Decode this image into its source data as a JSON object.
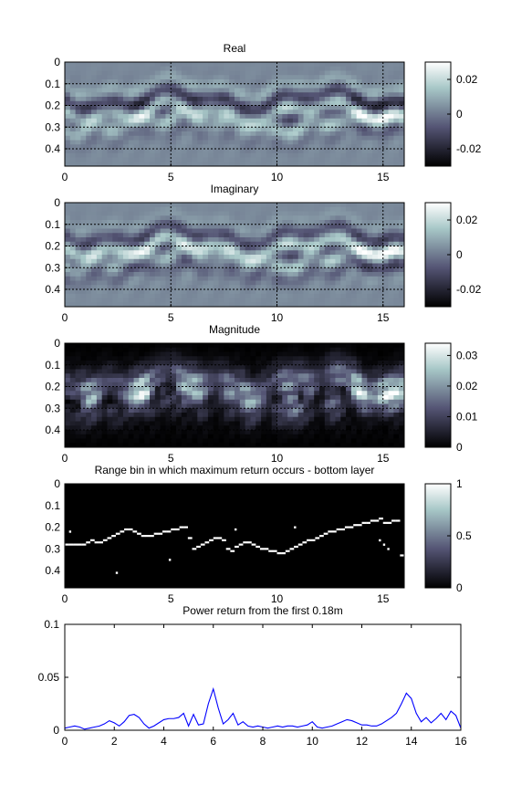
{
  "chart_data": [
    {
      "type": "heatmap",
      "title": "Real",
      "xlim": [
        0,
        16
      ],
      "ylim": [
        0,
        0.48
      ],
      "y_reversed": true,
      "grid": true,
      "x_ticks": [
        "0",
        "5",
        "10",
        "15"
      ],
      "y_ticks": [
        "0",
        "0.1",
        "0.2",
        "0.3",
        "0.4"
      ],
      "colorbar": {
        "ticks": [
          "0.02",
          "0",
          "-0.02"
        ],
        "range": [
          -0.03,
          0.03
        ]
      },
      "colormap": "bone"
    },
    {
      "type": "heatmap",
      "title": "Imaginary",
      "xlim": [
        0,
        16
      ],
      "ylim": [
        0,
        0.48
      ],
      "y_reversed": true,
      "grid": true,
      "x_ticks": [
        "0",
        "5",
        "10",
        "15"
      ],
      "y_ticks": [
        "0",
        "0.1",
        "0.2",
        "0.3",
        "0.4"
      ],
      "colorbar": {
        "ticks": [
          "0.02",
          "0",
          "-0.02"
        ],
        "range": [
          -0.03,
          0.03
        ]
      },
      "colormap": "bone"
    },
    {
      "type": "heatmap",
      "title": "Magnitude",
      "xlim": [
        0,
        16
      ],
      "ylim": [
        0,
        0.48
      ],
      "y_reversed": true,
      "grid": true,
      "x_ticks": [
        "0",
        "5",
        "10",
        "15"
      ],
      "y_ticks": [
        "0",
        "0.1",
        "0.2",
        "0.3",
        "0.4"
      ],
      "colorbar": {
        "ticks": [
          "0.03",
          "0.02",
          "0.01",
          "0"
        ],
        "range": [
          0,
          0.034
        ]
      },
      "colormap": "bone"
    },
    {
      "type": "heatmap",
      "title": "Range bin in which maximum return occurs - bottom layer",
      "xlim": [
        0,
        16
      ],
      "ylim": [
        0,
        0.48
      ],
      "y_reversed": true,
      "grid": false,
      "x_ticks": [
        "0",
        "5",
        "10",
        "15"
      ],
      "y_ticks": [
        "0",
        "0.1",
        "0.2",
        "0.3",
        "0.4"
      ],
      "colorbar": {
        "ticks": [
          "1",
          "0.5",
          "0"
        ],
        "range": [
          0,
          1
        ]
      },
      "colormap": "bone",
      "x": [
        0.0,
        0.2,
        0.4,
        0.6,
        0.8,
        1.0,
        1.2,
        1.4,
        1.6,
        1.8,
        2.0,
        2.2,
        2.4,
        2.6,
        2.8,
        3.0,
        3.2,
        3.4,
        3.6,
        3.8,
        4.0,
        4.2,
        4.4,
        4.6,
        4.8,
        5.0,
        5.2,
        5.4,
        5.6,
        5.8,
        6.0,
        6.2,
        6.4,
        6.6,
        6.8,
        7.0,
        7.2,
        7.4,
        7.6,
        7.8,
        8.0,
        8.2,
        8.4,
        8.6,
        8.8,
        9.0,
        9.2,
        9.4,
        9.6,
        9.8,
        10.0,
        10.2,
        10.4,
        10.6,
        10.8,
        11.0,
        11.2,
        11.4,
        11.6,
        11.8,
        12.0,
        12.2,
        12.4,
        12.6,
        12.8,
        13.0,
        13.2,
        13.4,
        13.6,
        13.8,
        14.0,
        14.2,
        14.4,
        14.6,
        14.8,
        15.0,
        15.2,
        15.4,
        15.6,
        15.8
      ],
      "range_m": [
        0.28,
        0.28,
        0.28,
        0.28,
        0.28,
        0.27,
        0.26,
        0.27,
        0.27,
        0.26,
        0.25,
        0.24,
        0.23,
        0.22,
        0.21,
        0.21,
        0.22,
        0.23,
        0.24,
        0.24,
        0.24,
        0.23,
        0.23,
        0.22,
        0.22,
        0.21,
        0.21,
        0.2,
        0.2,
        0.25,
        0.3,
        0.29,
        0.28,
        0.27,
        0.26,
        0.25,
        0.25,
        0.26,
        0.3,
        0.31,
        0.29,
        0.28,
        0.27,
        0.27,
        0.28,
        0.29,
        0.3,
        0.3,
        0.31,
        0.31,
        0.32,
        0.32,
        0.31,
        0.3,
        0.29,
        0.28,
        0.27,
        0.26,
        0.26,
        0.25,
        0.24,
        0.23,
        0.22,
        0.22,
        0.21,
        0.21,
        0.2,
        0.2,
        0.19,
        0.19,
        0.18,
        0.18,
        0.17,
        0.17,
        0.16,
        0.18,
        0.18,
        0.17,
        0.17,
        0.33
      ],
      "isolated_points": [
        [
          0.2,
          0.22
        ],
        [
          2.4,
          0.41
        ],
        [
          4.9,
          0.35
        ],
        [
          8.0,
          0.21
        ],
        [
          10.8,
          0.2
        ],
        [
          14.8,
          0.26
        ],
        [
          15.0,
          0.28
        ],
        [
          15.2,
          0.3
        ]
      ]
    },
    {
      "type": "line",
      "title": "Power return from the first 0.18m",
      "xlim": [
        0,
        16
      ],
      "ylim": [
        0,
        0.1
      ],
      "x_ticks": [
        "0",
        "2",
        "4",
        "6",
        "8",
        "10",
        "12",
        "14",
        "16"
      ],
      "y_ticks": [
        "0",
        "0.05",
        "0.1"
      ],
      "grid": false,
      "color": "#0000ff",
      "x": [
        0.0,
        0.2,
        0.4,
        0.6,
        0.8,
        1.0,
        1.2,
        1.4,
        1.6,
        1.8,
        2.0,
        2.2,
        2.4,
        2.6,
        2.8,
        3.0,
        3.2,
        3.4,
        3.6,
        3.8,
        4.0,
        4.2,
        4.4,
        4.6,
        4.8,
        5.0,
        5.2,
        5.4,
        5.6,
        5.8,
        6.0,
        6.2,
        6.4,
        6.6,
        6.8,
        7.0,
        7.2,
        7.4,
        7.6,
        7.8,
        8.0,
        8.2,
        8.4,
        8.6,
        8.8,
        9.0,
        9.2,
        9.4,
        9.6,
        9.8,
        10.0,
        10.2,
        10.4,
        10.6,
        10.8,
        11.0,
        11.2,
        11.4,
        11.6,
        11.8,
        12.0,
        12.2,
        12.4,
        12.6,
        12.8,
        13.0,
        13.2,
        13.4,
        13.6,
        13.8,
        14.0,
        14.2,
        14.4,
        14.6,
        14.8,
        15.0,
        15.2,
        15.4,
        15.6,
        15.8,
        16.0
      ],
      "y": [
        0.002,
        0.003,
        0.004,
        0.003,
        0.001,
        0.002,
        0.003,
        0.004,
        0.006,
        0.009,
        0.007,
        0.004,
        0.008,
        0.014,
        0.015,
        0.012,
        0.006,
        0.002,
        0.004,
        0.007,
        0.01,
        0.011,
        0.011,
        0.012,
        0.016,
        0.004,
        0.015,
        0.005,
        0.006,
        0.025,
        0.039,
        0.021,
        0.006,
        0.01,
        0.016,
        0.005,
        0.008,
        0.004,
        0.003,
        0.004,
        0.003,
        0.002,
        0.003,
        0.004,
        0.003,
        0.004,
        0.004,
        0.003,
        0.004,
        0.005,
        0.008,
        0.003,
        0.002,
        0.003,
        0.004,
        0.006,
        0.008,
        0.01,
        0.009,
        0.007,
        0.005,
        0.005,
        0.004,
        0.004,
        0.006,
        0.009,
        0.012,
        0.016,
        0.025,
        0.035,
        0.03,
        0.016,
        0.008,
        0.012,
        0.007,
        0.011,
        0.016,
        0.01,
        0.018,
        0.014,
        0.002
      ]
    }
  ]
}
